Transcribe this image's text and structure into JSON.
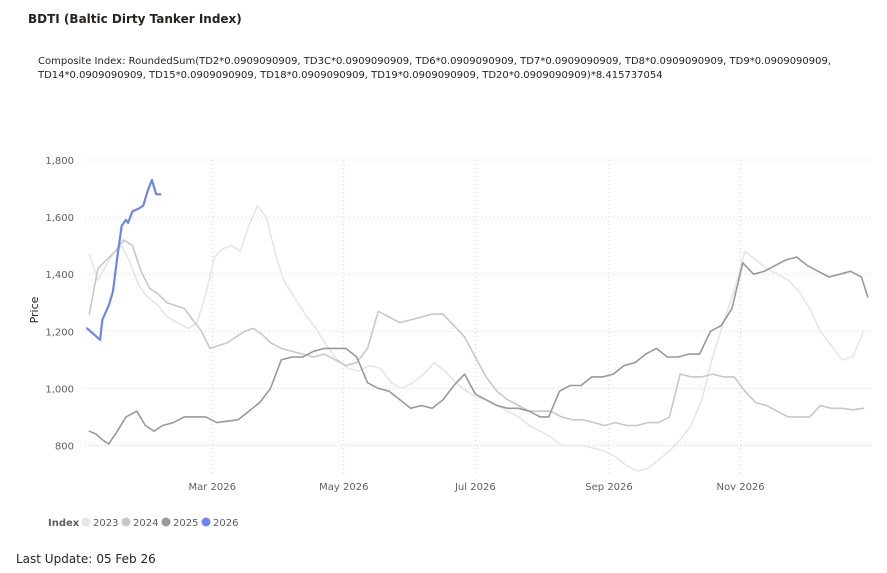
{
  "header": {
    "title": "BDTI (Baltic Dirty Tanker Index)",
    "subtitle": "Composite Index: RoundedSum(TD2*0.0909090909, TD3C*0.0909090909, TD6*0.0909090909, TD7*0.0909090909, TD8*0.0909090909, TD9*0.0909090909, TD14*0.0909090909, TD15*0.0909090909, TD18*0.0909090909, TD19*0.0909090909, TD20*0.0909090909)*8.415737054"
  },
  "footer": {
    "label": "Last Update:",
    "value": "05 Feb 26"
  },
  "chart_data": {
    "type": "line",
    "ylabel": "Price",
    "xlabel": "",
    "ylim": [
      700,
      1800
    ],
    "xlim": [
      "2026-01-01",
      "2026-12-31"
    ],
    "grid": true,
    "yticks": [
      800,
      1000,
      1200,
      1400,
      1600,
      1800
    ],
    "ytick_labels": [
      "800",
      "1,000",
      "1,200",
      "1,400",
      "1,600",
      "1,800"
    ],
    "xticks": [
      {
        "date": "2026-03-01",
        "label": "Mar 2026"
      },
      {
        "date": "2026-05-01",
        "label": "May 2026"
      },
      {
        "date": "2026-07-01",
        "label": "Jul 2026"
      },
      {
        "date": "2026-09-01",
        "label": "Sep 2026"
      },
      {
        "date": "2026-11-01",
        "label": "Nov 2026"
      }
    ],
    "legend": {
      "title": "Index",
      "position": "bottom-left"
    },
    "series": [
      {
        "name": "2023",
        "color": "#e6e6e6",
        "points": [
          [
            "2026-01-03",
            1470
          ],
          [
            "2026-01-07",
            1380
          ],
          [
            "2026-01-10",
            1420
          ],
          [
            "2026-01-14",
            1470
          ],
          [
            "2026-01-18",
            1500
          ],
          [
            "2026-01-22",
            1440
          ],
          [
            "2026-01-26",
            1360
          ],
          [
            "2026-01-30",
            1320
          ],
          [
            "2026-02-04",
            1290
          ],
          [
            "2026-02-08",
            1250
          ],
          [
            "2026-02-13",
            1230
          ],
          [
            "2026-02-18",
            1210
          ],
          [
            "2026-02-22",
            1230
          ],
          [
            "2026-02-26",
            1330
          ],
          [
            "2026-03-02",
            1460
          ],
          [
            "2026-03-06",
            1490
          ],
          [
            "2026-03-10",
            1500
          ],
          [
            "2026-03-14",
            1480
          ],
          [
            "2026-03-18",
            1570
          ],
          [
            "2026-03-22",
            1640
          ],
          [
            "2026-03-26",
            1600
          ],
          [
            "2026-03-30",
            1480
          ],
          [
            "2026-04-03",
            1380
          ],
          [
            "2026-04-08",
            1320
          ],
          [
            "2026-04-13",
            1260
          ],
          [
            "2026-04-18",
            1210
          ],
          [
            "2026-04-23",
            1150
          ],
          [
            "2026-04-28",
            1100
          ],
          [
            "2026-05-03",
            1070
          ],
          [
            "2026-05-08",
            1060
          ],
          [
            "2026-05-13",
            1080
          ],
          [
            "2026-05-18",
            1070
          ],
          [
            "2026-05-23",
            1020
          ],
          [
            "2026-05-28",
            1000
          ],
          [
            "2026-06-02",
            1020
          ],
          [
            "2026-06-07",
            1050
          ],
          [
            "2026-06-12",
            1090
          ],
          [
            "2026-06-17",
            1060
          ],
          [
            "2026-06-22",
            1020
          ],
          [
            "2026-06-27",
            990
          ],
          [
            "2026-07-01",
            970
          ],
          [
            "2026-07-06",
            960
          ],
          [
            "2026-07-11",
            940
          ],
          [
            "2026-07-16",
            920
          ],
          [
            "2026-07-21",
            900
          ],
          [
            "2026-07-26",
            870
          ],
          [
            "2026-07-31",
            850
          ],
          [
            "2026-08-05",
            830
          ],
          [
            "2026-08-10",
            800
          ],
          [
            "2026-08-15",
            800
          ],
          [
            "2026-08-20",
            800
          ],
          [
            "2026-08-25",
            790
          ],
          [
            "2026-08-30",
            780
          ],
          [
            "2026-09-04",
            760
          ],
          [
            "2026-09-09",
            730
          ],
          [
            "2026-09-14",
            710
          ],
          [
            "2026-09-19",
            720
          ],
          [
            "2026-09-24",
            750
          ],
          [
            "2026-09-29",
            780
          ],
          [
            "2026-10-04",
            820
          ],
          [
            "2026-10-09",
            870
          ],
          [
            "2026-10-14",
            960
          ],
          [
            "2026-10-19",
            1110
          ],
          [
            "2026-10-24",
            1230
          ],
          [
            "2026-10-29",
            1340
          ],
          [
            "2026-11-03",
            1480
          ],
          [
            "2026-11-08",
            1450
          ],
          [
            "2026-11-13",
            1420
          ],
          [
            "2026-11-18",
            1400
          ],
          [
            "2026-11-23",
            1380
          ],
          [
            "2026-11-28",
            1340
          ],
          [
            "2026-12-03",
            1280
          ],
          [
            "2026-12-08",
            1200
          ],
          [
            "2026-12-13",
            1150
          ],
          [
            "2026-12-18",
            1100
          ],
          [
            "2026-12-23",
            1110
          ],
          [
            "2026-12-28",
            1200
          ]
        ]
      },
      {
        "name": "2024",
        "color": "#c8c8c8",
        "points": [
          [
            "2026-01-03",
            1260
          ],
          [
            "2026-01-07",
            1420
          ],
          [
            "2026-01-11",
            1450
          ],
          [
            "2026-01-15",
            1480
          ],
          [
            "2026-01-19",
            1520
          ],
          [
            "2026-01-23",
            1500
          ],
          [
            "2026-01-27",
            1410
          ],
          [
            "2026-01-31",
            1350
          ],
          [
            "2026-02-04",
            1330
          ],
          [
            "2026-02-08",
            1300
          ],
          [
            "2026-02-12",
            1290
          ],
          [
            "2026-02-16",
            1280
          ],
          [
            "2026-02-20",
            1240
          ],
          [
            "2026-02-24",
            1200
          ],
          [
            "2026-02-28",
            1140
          ],
          [
            "2026-03-04",
            1150
          ],
          [
            "2026-03-08",
            1160
          ],
          [
            "2026-03-12",
            1180
          ],
          [
            "2026-03-16",
            1200
          ],
          [
            "2026-03-20",
            1210
          ],
          [
            "2026-03-24",
            1190
          ],
          [
            "2026-03-28",
            1160
          ],
          [
            "2026-04-02",
            1140
          ],
          [
            "2026-04-07",
            1130
          ],
          [
            "2026-04-12",
            1120
          ],
          [
            "2026-04-17",
            1110
          ],
          [
            "2026-04-22",
            1120
          ],
          [
            "2026-04-27",
            1100
          ],
          [
            "2026-05-02",
            1080
          ],
          [
            "2026-05-07",
            1090
          ],
          [
            "2026-05-12",
            1140
          ],
          [
            "2026-05-17",
            1270
          ],
          [
            "2026-05-22",
            1250
          ],
          [
            "2026-05-27",
            1230
          ],
          [
            "2026-06-01",
            1240
          ],
          [
            "2026-06-06",
            1250
          ],
          [
            "2026-06-11",
            1260
          ],
          [
            "2026-06-16",
            1260
          ],
          [
            "2026-06-21",
            1220
          ],
          [
            "2026-06-26",
            1180
          ],
          [
            "2026-07-01",
            1110
          ],
          [
            "2026-07-06",
            1040
          ],
          [
            "2026-07-11",
            990
          ],
          [
            "2026-07-16",
            960
          ],
          [
            "2026-07-21",
            940
          ],
          [
            "2026-07-26",
            920
          ],
          [
            "2026-07-31",
            920
          ],
          [
            "2026-08-05",
            920
          ],
          [
            "2026-08-10",
            900
          ],
          [
            "2026-08-15",
            890
          ],
          [
            "2026-08-20",
            890
          ],
          [
            "2026-08-25",
            880
          ],
          [
            "2026-08-30",
            870
          ],
          [
            "2026-09-04",
            880
          ],
          [
            "2026-09-09",
            870
          ],
          [
            "2026-09-14",
            870
          ],
          [
            "2026-09-19",
            880
          ],
          [
            "2026-09-24",
            880
          ],
          [
            "2026-09-29",
            900
          ],
          [
            "2026-10-04",
            1050
          ],
          [
            "2026-10-09",
            1040
          ],
          [
            "2026-10-14",
            1040
          ],
          [
            "2026-10-19",
            1050
          ],
          [
            "2026-10-24",
            1040
          ],
          [
            "2026-10-29",
            1040
          ],
          [
            "2026-11-03",
            990
          ],
          [
            "2026-11-08",
            950
          ],
          [
            "2026-11-13",
            940
          ],
          [
            "2026-11-18",
            920
          ],
          [
            "2026-11-23",
            900
          ],
          [
            "2026-11-28",
            900
          ],
          [
            "2026-12-03",
            900
          ],
          [
            "2026-12-08",
            940
          ],
          [
            "2026-12-13",
            930
          ],
          [
            "2026-12-18",
            930
          ],
          [
            "2026-12-23",
            925
          ],
          [
            "2026-12-28",
            930
          ]
        ]
      },
      {
        "name": "2025",
        "color": "#999999",
        "points": [
          [
            "2026-01-03",
            850
          ],
          [
            "2026-01-06",
            840
          ],
          [
            "2026-01-09",
            820
          ],
          [
            "2026-01-12",
            805
          ],
          [
            "2026-01-16",
            850
          ],
          [
            "2026-01-20",
            900
          ],
          [
            "2026-01-25",
            920
          ],
          [
            "2026-01-29",
            870
          ],
          [
            "2026-02-02",
            850
          ],
          [
            "2026-02-06",
            870
          ],
          [
            "2026-02-11",
            880
          ],
          [
            "2026-02-16",
            900
          ],
          [
            "2026-02-21",
            900
          ],
          [
            "2026-02-26",
            900
          ],
          [
            "2026-03-03",
            880
          ],
          [
            "2026-03-08",
            885
          ],
          [
            "2026-03-13",
            890
          ],
          [
            "2026-03-18",
            920
          ],
          [
            "2026-03-23",
            950
          ],
          [
            "2026-03-28",
            1000
          ],
          [
            "2026-04-02",
            1100
          ],
          [
            "2026-04-07",
            1110
          ],
          [
            "2026-04-12",
            1110
          ],
          [
            "2026-04-17",
            1130
          ],
          [
            "2026-04-22",
            1140
          ],
          [
            "2026-04-27",
            1140
          ],
          [
            "2026-05-02",
            1140
          ],
          [
            "2026-05-07",
            1110
          ],
          [
            "2026-05-12",
            1020
          ],
          [
            "2026-05-17",
            1000
          ],
          [
            "2026-05-22",
            990
          ],
          [
            "2026-05-27",
            960
          ],
          [
            "2026-06-01",
            930
          ],
          [
            "2026-06-06",
            940
          ],
          [
            "2026-06-11",
            930
          ],
          [
            "2026-06-16",
            960
          ],
          [
            "2026-06-21",
            1010
          ],
          [
            "2026-06-26",
            1050
          ],
          [
            "2026-07-01",
            980
          ],
          [
            "2026-07-06",
            960
          ],
          [
            "2026-07-11",
            940
          ],
          [
            "2026-07-16",
            930
          ],
          [
            "2026-07-21",
            930
          ],
          [
            "2026-07-26",
            920
          ],
          [
            "2026-07-31",
            900
          ],
          [
            "2026-08-04",
            900
          ],
          [
            "2026-08-09",
            990
          ],
          [
            "2026-08-14",
            1010
          ],
          [
            "2026-08-19",
            1010
          ],
          [
            "2026-08-24",
            1040
          ],
          [
            "2026-08-29",
            1040
          ],
          [
            "2026-09-03",
            1050
          ],
          [
            "2026-09-08",
            1080
          ],
          [
            "2026-09-13",
            1090
          ],
          [
            "2026-09-18",
            1120
          ],
          [
            "2026-09-23",
            1140
          ],
          [
            "2026-09-28",
            1110
          ],
          [
            "2026-10-03",
            1110
          ],
          [
            "2026-10-08",
            1120
          ],
          [
            "2026-10-13",
            1120
          ],
          [
            "2026-10-18",
            1200
          ],
          [
            "2026-10-23",
            1220
          ],
          [
            "2026-10-28",
            1280
          ],
          [
            "2026-11-02",
            1440
          ],
          [
            "2026-11-07",
            1400
          ],
          [
            "2026-11-12",
            1410
          ],
          [
            "2026-11-17",
            1430
          ],
          [
            "2026-11-22",
            1450
          ],
          [
            "2026-11-27",
            1460
          ],
          [
            "2026-12-02",
            1430
          ],
          [
            "2026-12-07",
            1410
          ],
          [
            "2026-12-12",
            1390
          ],
          [
            "2026-12-17",
            1400
          ],
          [
            "2026-12-22",
            1410
          ],
          [
            "2026-12-27",
            1390
          ],
          [
            "2026-12-30",
            1320
          ]
        ]
      },
      {
        "name": "2026",
        "color": "#6b86ed",
        "points": [
          [
            "2026-01-02",
            1210
          ],
          [
            "2026-01-05",
            1190
          ],
          [
            "2026-01-08",
            1170
          ],
          [
            "2026-01-09",
            1240
          ],
          [
            "2026-01-12",
            1290
          ],
          [
            "2026-01-14",
            1340
          ],
          [
            "2026-01-16",
            1460
          ],
          [
            "2026-01-18",
            1570
          ],
          [
            "2026-01-20",
            1590
          ],
          [
            "2026-01-21",
            1580
          ],
          [
            "2026-01-23",
            1620
          ],
          [
            "2026-01-26",
            1630
          ],
          [
            "2026-01-28",
            1640
          ],
          [
            "2026-01-30",
            1690
          ],
          [
            "2026-02-01",
            1730
          ],
          [
            "2026-02-03",
            1680
          ],
          [
            "2026-02-05",
            1680
          ]
        ]
      }
    ]
  }
}
